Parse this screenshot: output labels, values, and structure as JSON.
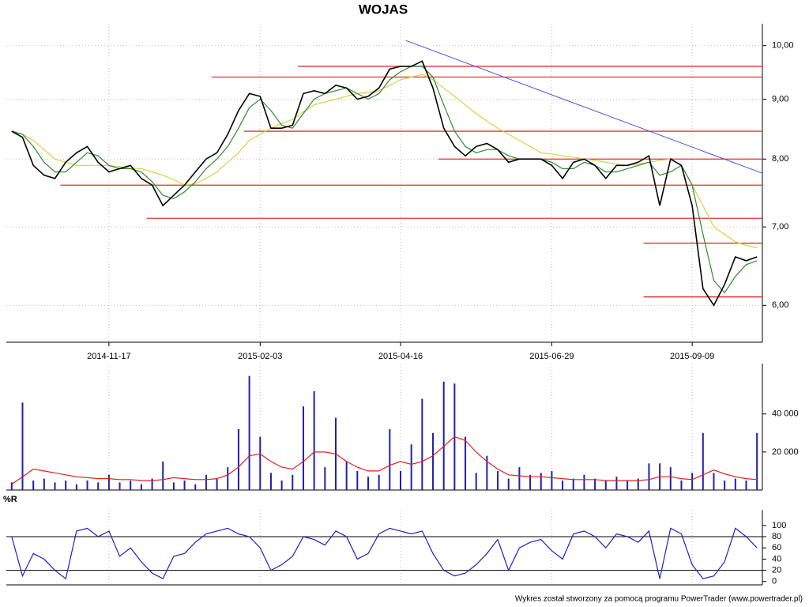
{
  "chart_data": [
    {
      "type": "line",
      "title": "WOJAS",
      "log_scale": true,
      "grid": true,
      "categories": [
        null,
        null,
        null,
        null,
        null,
        null,
        null,
        null,
        null,
        "2014-11-17",
        null,
        null,
        null,
        null,
        null,
        null,
        null,
        null,
        null,
        null,
        null,
        null,
        null,
        "2015-02-03",
        null,
        null,
        null,
        null,
        null,
        null,
        null,
        null,
        null,
        null,
        null,
        null,
        "2015-04-16",
        null,
        null,
        null,
        null,
        null,
        null,
        null,
        null,
        null,
        null,
        null,
        null,
        null,
        "2015-06-29",
        null,
        null,
        null,
        null,
        null,
        null,
        null,
        null,
        null,
        null,
        null,
        null,
        "2015-09-09",
        null,
        null,
        null,
        null,
        null,
        null
      ],
      "series": [
        {
          "color": "#000000",
          "values": [
            8.45,
            8.35,
            7.9,
            7.75,
            7.7,
            7.95,
            8.1,
            8.2,
            7.95,
            7.8,
            7.85,
            7.9,
            7.7,
            7.6,
            7.3,
            7.45,
            7.6,
            7.8,
            8.0,
            8.1,
            8.4,
            8.8,
            9.1,
            9.05,
            8.5,
            8.5,
            8.55,
            9.1,
            9.15,
            9.1,
            9.25,
            9.2,
            9.0,
            9.05,
            9.2,
            9.55,
            9.6,
            9.6,
            9.7,
            9.2,
            8.5,
            8.2,
            8.05,
            8.2,
            8.25,
            8.15,
            7.95,
            8.0,
            8.0,
            8.0,
            7.9,
            7.7,
            7.95,
            8.0,
            7.9,
            7.7,
            7.9,
            7.9,
            7.95,
            8.05,
            7.3,
            8.0,
            7.9,
            7.3,
            6.2,
            6.0,
            6.25,
            6.6,
            6.55,
            6.6
          ]
        },
        {
          "color": "#2e8b2e",
          "values": [
            8.45,
            8.4,
            8.2,
            7.95,
            7.8,
            7.8,
            7.95,
            8.1,
            8.05,
            7.9,
            7.85,
            7.85,
            7.8,
            7.65,
            7.45,
            7.4,
            7.5,
            7.65,
            7.85,
            8.0,
            8.2,
            8.5,
            8.85,
            9.0,
            8.8,
            8.55,
            8.5,
            8.75,
            9.0,
            9.1,
            9.15,
            9.2,
            9.1,
            9.0,
            9.1,
            9.35,
            9.5,
            9.6,
            9.6,
            9.4,
            8.9,
            8.45,
            8.2,
            8.1,
            8.15,
            8.15,
            8.05,
            8.0,
            8.0,
            8.0,
            7.95,
            7.85,
            7.85,
            7.95,
            7.9,
            7.8,
            7.8,
            7.85,
            7.9,
            7.95,
            7.75,
            7.8,
            7.9,
            7.6,
            6.9,
            6.3,
            6.15,
            6.35,
            6.5,
            6.55
          ]
        },
        {
          "color": "#d8d040",
          "values": [
            8.45,
            8.4,
            8.3,
            8.15,
            8.0,
            7.95,
            7.9,
            7.9,
            7.9,
            7.9,
            7.88,
            7.86,
            7.85,
            7.8,
            7.75,
            7.68,
            7.6,
            7.62,
            7.7,
            7.8,
            7.95,
            8.1,
            8.3,
            8.4,
            8.5,
            8.58,
            8.65,
            8.78,
            8.9,
            8.95,
            9.0,
            9.05,
            9.1,
            9.12,
            9.15,
            9.25,
            9.35,
            9.4,
            9.45,
            9.35,
            9.2,
            9.05,
            8.9,
            8.75,
            8.62,
            8.5,
            8.4,
            8.3,
            8.2,
            8.1,
            8.08,
            8.05,
            8.03,
            8.0,
            7.98,
            7.95,
            7.92,
            7.9,
            7.92,
            7.95,
            7.98,
            8.0,
            7.9,
            7.6,
            7.3,
            7.0,
            6.9,
            6.8,
            6.75,
            6.72
          ]
        }
      ],
      "ylim": [
        5.58,
        10.44
      ],
      "yticks": [
        {
          "value": 6,
          "label": "6,00"
        },
        {
          "value": 7,
          "label": "7,00"
        },
        {
          "value": 8,
          "label": "8,00"
        },
        {
          "value": 9,
          "label": "9,00"
        },
        {
          "value": 10,
          "label": "10,00"
        }
      ],
      "levels": [
        {
          "value": 9.6,
          "from": 27
        },
        {
          "value": 9.4,
          "from": 19
        },
        {
          "value": 8.45,
          "from": 22
        },
        {
          "value": 8.0,
          "from": 40
        },
        {
          "value": 7.6,
          "from": 5
        },
        {
          "value": 7.12,
          "from": 13
        },
        {
          "value": 6.78,
          "from": 59
        },
        {
          "value": 6.1,
          "from": 59
        }
      ],
      "trend": {
        "from": [
          37,
          10.1
        ],
        "to": [
          70,
          7.78
        ]
      }
    },
    {
      "type": "bar",
      "color": "#2020b0",
      "average_color": "#e02020",
      "values": [
        4000,
        46000,
        5000,
        6000,
        4000,
        5000,
        3000,
        5000,
        4000,
        8000,
        4000,
        5000,
        3000,
        6000,
        15000,
        4000,
        5000,
        3000,
        8000,
        6000,
        12000,
        32000,
        60000,
        28000,
        9000,
        5000,
        8000,
        44000,
        52000,
        12000,
        38000,
        15000,
        10000,
        7000,
        8000,
        32000,
        10000,
        24000,
        48000,
        30000,
        57000,
        56000,
        28000,
        9000,
        18000,
        10000,
        6000,
        12000,
        8000,
        9000,
        10000,
        5000,
        6000,
        8000,
        6000,
        5000,
        7000,
        5000,
        6000,
        14000,
        14000,
        12000,
        5000,
        9000,
        30000,
        9000,
        5000,
        6000,
        5000,
        30000
      ],
      "average": [
        3000,
        7000,
        11000,
        10000,
        9000,
        8000,
        7000,
        6500,
        6000,
        6000,
        5500,
        5500,
        5000,
        5000,
        5500,
        6500,
        6000,
        5500,
        5500,
        6000,
        8000,
        12000,
        18000,
        19000,
        15000,
        12000,
        11000,
        15000,
        20000,
        20000,
        19000,
        15000,
        12000,
        10000,
        10000,
        13000,
        15000,
        13500,
        15000,
        18000,
        23000,
        28000,
        26000,
        20000,
        15000,
        11000,
        8000,
        7500,
        7000,
        7000,
        6500,
        6000,
        5500,
        5500,
        5500,
        5000,
        5000,
        5000,
        5000,
        5500,
        7000,
        7000,
        6000,
        5500,
        8000,
        10500,
        8500,
        7000,
        6000,
        5500
      ],
      "ylim": [
        0,
        66500
      ],
      "yticks": [
        {
          "value": 20000,
          "label": "20 000"
        },
        {
          "value": 40000,
          "label": "40 000"
        }
      ]
    },
    {
      "type": "line",
      "title": "%R",
      "color": "#2020c0",
      "values": [
        80,
        10,
        50,
        40,
        20,
        5,
        90,
        95,
        80,
        90,
        45,
        60,
        35,
        15,
        5,
        45,
        50,
        70,
        85,
        90,
        95,
        85,
        80,
        60,
        20,
        30,
        45,
        80,
        75,
        65,
        90,
        80,
        40,
        50,
        85,
        95,
        90,
        85,
        90,
        50,
        20,
        10,
        15,
        30,
        50,
        75,
        20,
        60,
        70,
        75,
        55,
        40,
        85,
        90,
        80,
        60,
        85,
        80,
        70,
        90,
        5,
        95,
        85,
        30,
        5,
        10,
        35,
        95,
        80,
        60
      ],
      "ylim": [
        -6,
        128
      ],
      "yticks": [
        0,
        20,
        40,
        60,
        80,
        100
      ],
      "levels": [
        20,
        80
      ]
    }
  ],
  "footer": "Wykres został stworzony za pomocą programu PowerTrader (www.powertrader.pl)"
}
